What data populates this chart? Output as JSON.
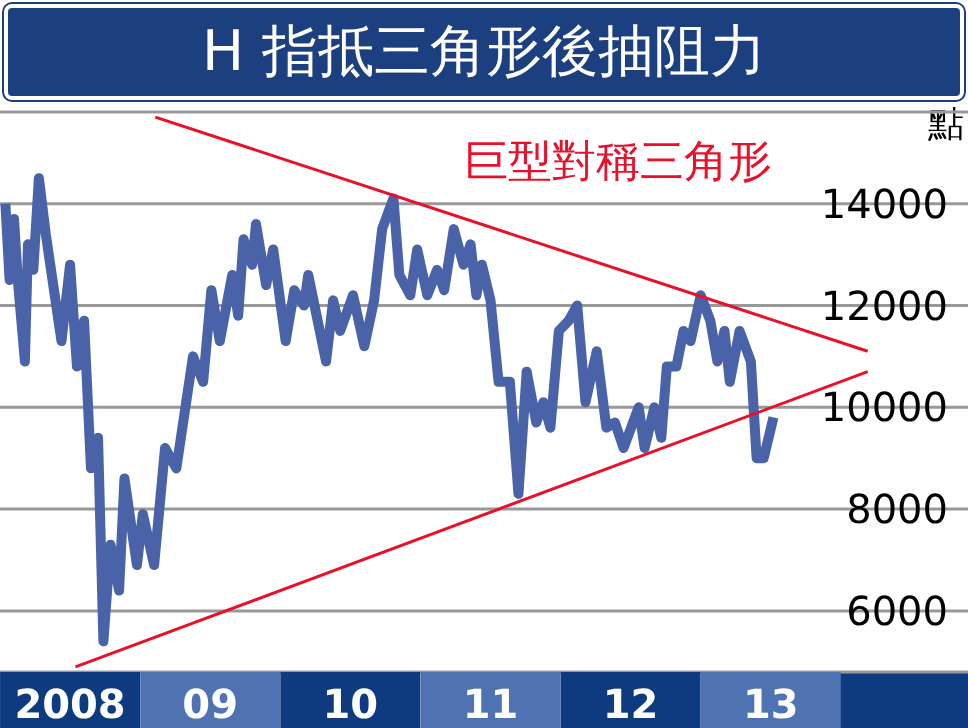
{
  "chart_data": {
    "type": "line",
    "title": "H 指抵三角形後抽阻力",
    "ylabel": "點",
    "annotations": [
      "巨型對稱三角形"
    ],
    "xlim": [
      "2008-01-01",
      "2014-11-28"
    ],
    "xticks": [
      {
        "value": "2008-07-01",
        "label": "2008"
      },
      {
        "value": "2009-07-01",
        "label": "09"
      },
      {
        "value": "2010-07-01",
        "label": "10"
      },
      {
        "value": "2011-07-01",
        "label": "11"
      },
      {
        "value": "2012-07-01",
        "label": "12"
      },
      {
        "value": "2013-07-01",
        "label": "13"
      }
    ],
    "ylim": [
      4800,
      15800
    ],
    "yticks": [
      6000,
      8000,
      10000,
      12000,
      14000
    ],
    "grid": "y",
    "marker": "none",
    "line_style": "solid",
    "series": [
      {
        "color": "#4a63a8",
        "x": [
          "2008-01-15",
          "2008-01-26",
          "2008-02-07",
          "2008-02-17",
          "2008-03-05",
          "2008-03-13",
          "2008-03-27",
          "2008-04-11",
          "2008-04-29",
          "2008-06-09",
          "2008-07-01",
          "2008-07-19",
          "2008-08-07",
          "2008-08-25",
          "2008-09-13",
          "2008-09-27",
          "2008-10-15",
          "2008-11-07",
          "2008-11-21",
          "2008-12-23",
          "2009-01-08",
          "2009-02-07",
          "2009-03-05",
          "2009-04-04",
          "2009-05-17",
          "2009-06-13",
          "2009-07-04",
          "2009-07-26",
          "2009-08-28",
          "2009-09-13",
          "2009-09-27",
          "2009-10-19",
          "2009-10-29",
          "2009-11-25",
          "2009-12-13",
          "2010-01-15",
          "2010-02-07",
          "2010-03-02",
          "2010-03-13",
          "2010-04-29",
          "2010-05-17",
          "2010-06-05",
          "2010-07-08",
          "2010-08-07",
          "2010-09-02",
          "2010-09-23",
          "2010-10-22",
          "2010-11-07",
          "2010-12-05",
          "2010-12-23",
          "2011-01-19",
          "2011-02-14",
          "2011-03-02",
          "2011-03-27",
          "2011-04-22",
          "2011-05-10",
          "2011-05-25",
          "2011-06-09",
          "2011-07-01",
          "2011-07-22",
          "2011-08-21",
          "2011-09-13",
          "2011-10-04",
          "2011-10-29",
          "2011-11-17",
          "2011-12-05",
          "2011-12-27",
          "2012-01-22",
          "2012-02-14",
          "2012-03-05",
          "2012-04-04",
          "2012-04-29",
          "2012-05-21",
          "2012-06-13",
          "2012-07-22",
          "2012-08-07",
          "2012-09-02",
          "2012-09-20",
          "2012-10-04",
          "2012-10-29",
          "2012-11-17",
          "2012-12-05",
          "2013-01-01",
          "2013-01-26",
          "2013-02-14",
          "2013-03-02",
          "2013-03-16",
          "2013-04-11",
          "2013-05-10",
          "2013-05-25",
          "2013-06-13",
          "2013-07-08"
        ],
        "values": [
          14000,
          12500,
          13700,
          12500,
          10900,
          13200,
          12700,
          14500,
          13400,
          11300,
          12800,
          10800,
          11700,
          8800,
          9400,
          5400,
          7300,
          6400,
          8600,
          6900,
          7900,
          6900,
          9200,
          8800,
          11000,
          10500,
          12300,
          11300,
          12600,
          11800,
          13300,
          12800,
          13600,
          12400,
          13100,
          11300,
          12300,
          12000,
          12600,
          10900,
          12100,
          11500,
          12200,
          11200,
          12100,
          13500,
          14100,
          12600,
          12200,
          13100,
          12200,
          12700,
          12300,
          13500,
          12800,
          13200,
          12200,
          12800,
          12100,
          10500,
          10500,
          8300,
          10700,
          9700,
          10100,
          9600,
          11500,
          11700,
          12000,
          10100,
          11100,
          9600,
          9700,
          9200,
          10000,
          9200,
          10000,
          9400,
          10800,
          10800,
          11500,
          11300,
          12200,
          11700,
          10900,
          11500,
          10500,
          11500,
          10900,
          9000,
          9000,
          9800
        ]
      },
      {
        "color": "#e8102a",
        "x": [
          "2009-02-10",
          "2014-03-10"
        ],
        "values": [
          15700,
          11100
        ]
      },
      {
        "color": "#e8102a",
        "x": [
          "2008-07-15",
          "2014-03-10"
        ],
        "values": [
          4900,
          10700
        ]
      }
    ]
  }
}
